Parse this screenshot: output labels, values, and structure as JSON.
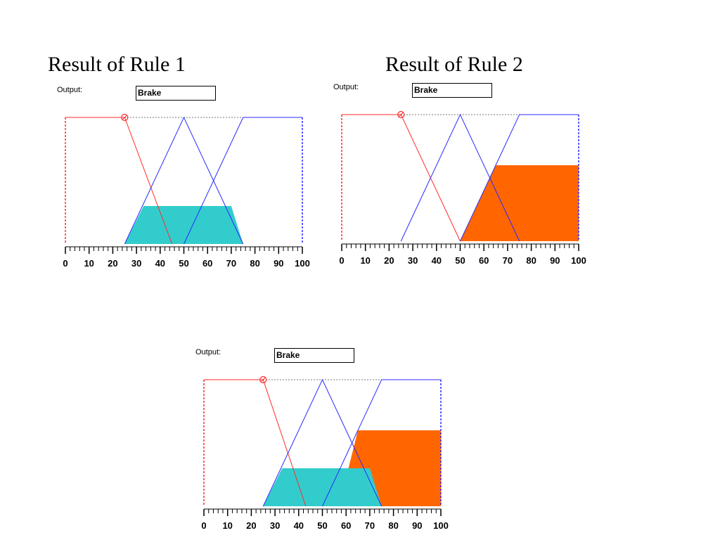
{
  "titles": {
    "rule1": "Result of Rule 1",
    "rule2": "Result of Rule 2"
  },
  "colors": {
    "low_mf": "#ff2a2a",
    "mid_mf": "#2a2aff",
    "high_mf": "#2a2aff",
    "rule1_fill": "#33cccc",
    "rule2_fill": "#ff6600",
    "frame": "#000000"
  },
  "chart_data": [
    {
      "type": "area",
      "title": "Result of Rule 1",
      "output_label": "Output:",
      "output_value": "Brake",
      "xlim": [
        0,
        100
      ],
      "ylim": [
        0,
        1
      ],
      "xticks": [
        0,
        10,
        20,
        30,
        40,
        50,
        60,
        70,
        80,
        90,
        100
      ],
      "membership_functions": [
        {
          "x": [
            0,
            25,
            45
          ],
          "y": [
            1,
            1,
            0
          ]
        },
        {
          "x": [
            25,
            50,
            75
          ],
          "y": [
            0,
            1,
            0
          ]
        },
        {
          "x": [
            50,
            75,
            100
          ],
          "y": [
            0,
            1,
            1
          ]
        }
      ],
      "input_marker": {
        "x": 25,
        "y": 1
      },
      "result_regions": [
        {
          "x": [
            25,
            33,
            70,
            75
          ],
          "y": [
            0,
            0.3,
            0.3,
            0
          ],
          "fill": "#33cccc"
        }
      ]
    },
    {
      "type": "area",
      "title": "Result of Rule 2",
      "output_label": "Output:",
      "output_value": "Brake",
      "xlim": [
        0,
        100
      ],
      "ylim": [
        0,
        1
      ],
      "xticks": [
        0,
        10,
        20,
        30,
        40,
        50,
        60,
        70,
        80,
        90,
        100
      ],
      "membership_functions": [
        {
          "x": [
            0,
            25,
            50
          ],
          "y": [
            1,
            1,
            0
          ]
        },
        {
          "x": [
            25,
            50,
            75
          ],
          "y": [
            0,
            1,
            0
          ]
        },
        {
          "x": [
            50,
            75,
            100
          ],
          "y": [
            0,
            1,
            1
          ]
        }
      ],
      "input_marker": {
        "x": 25,
        "y": 1
      },
      "result_regions": [
        {
          "x": [
            50,
            65,
            100,
            100
          ],
          "y": [
            0,
            0.6,
            0.6,
            0
          ],
          "fill": "#ff6600"
        }
      ]
    },
    {
      "type": "area",
      "title": "",
      "output_label": "Output:",
      "output_value": "Brake",
      "xlim": [
        0,
        100
      ],
      "ylim": [
        0,
        1
      ],
      "xticks": [
        0,
        10,
        20,
        30,
        40,
        50,
        60,
        70,
        80,
        90,
        100
      ],
      "membership_functions": [
        {
          "x": [
            0,
            25,
            43
          ],
          "y": [
            1,
            1,
            0
          ]
        },
        {
          "x": [
            25,
            50,
            75
          ],
          "y": [
            0,
            1,
            0
          ]
        },
        {
          "x": [
            50,
            75,
            100
          ],
          "y": [
            0,
            1,
            1
          ]
        }
      ],
      "input_marker": {
        "x": 25,
        "y": 1
      },
      "result_regions": [
        {
          "x": [
            57,
            65,
            100,
            100
          ],
          "y": [
            0,
            0.6,
            0.6,
            0
          ],
          "fill": "#ff6600"
        },
        {
          "x": [
            25,
            33,
            70,
            75
          ],
          "y": [
            0,
            0.3,
            0.3,
            0
          ],
          "fill": "#33cccc"
        }
      ]
    }
  ]
}
